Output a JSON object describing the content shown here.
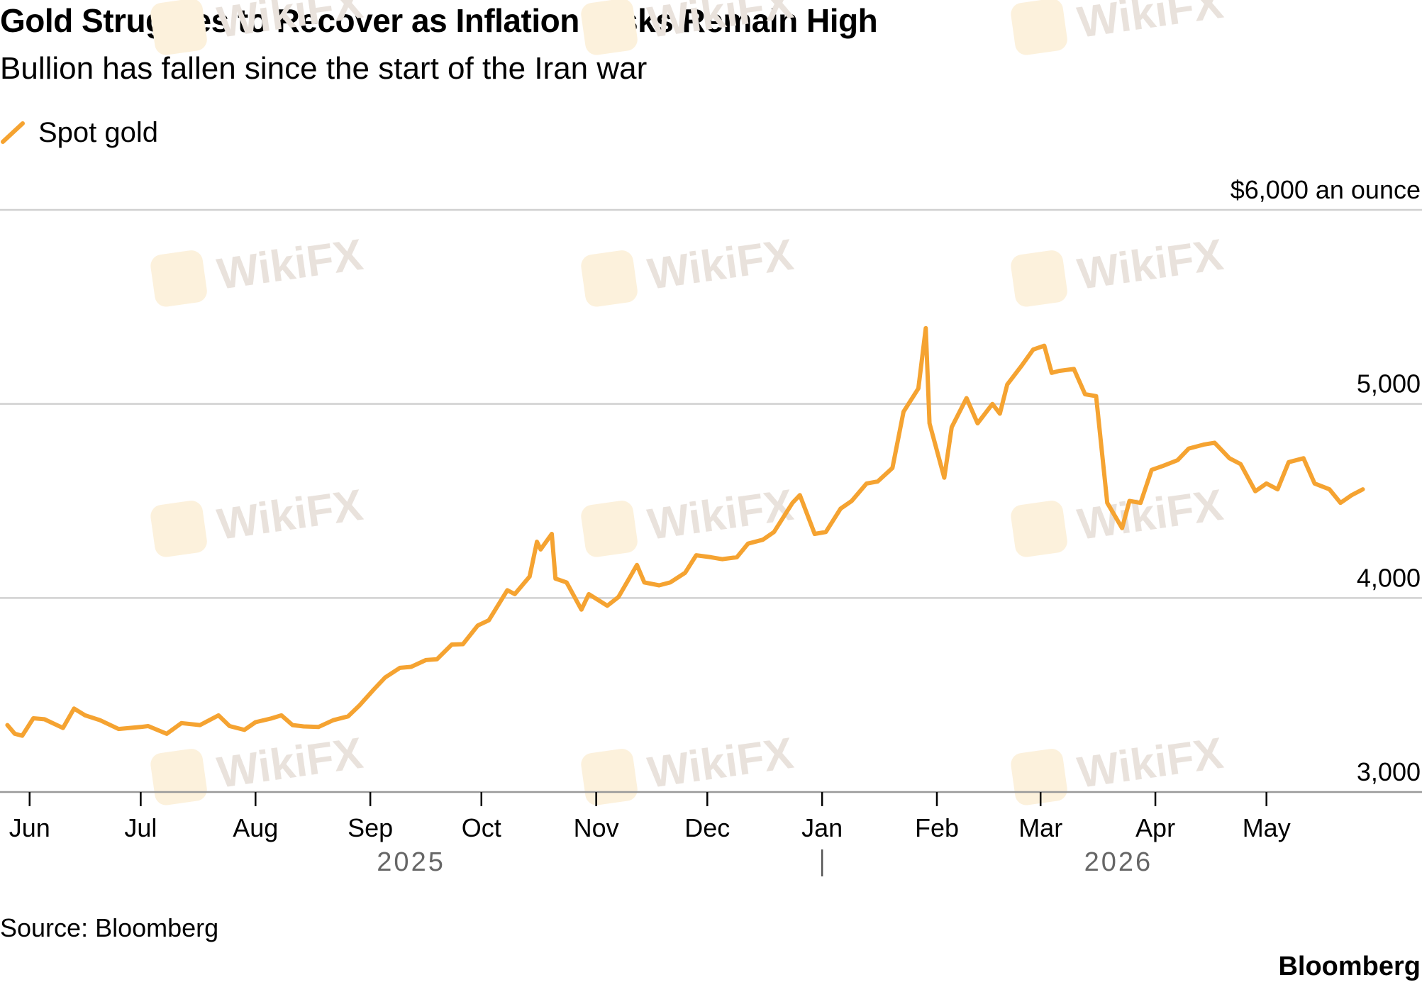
{
  "watermark_text": "WikiFX",
  "footer": {
    "source": "Source: Bloomberg",
    "brand": "Bloomberg"
  },
  "colors": {
    "series": "#f5a331",
    "grid": "#d0d0d0",
    "axis": "#999999",
    "year_label": "#666666"
  },
  "chart_data": {
    "type": "line",
    "title": "Gold Struggles to Recover as Inflation Risks Remain High",
    "subtitle": "Bullion has fallen since the start of the Iran war",
    "legend": "top-left",
    "grid": true,
    "y_unit_label": "$6,000 an ounce",
    "ylim": [
      3000,
      6000
    ],
    "y_ticks": [
      {
        "value": 3000,
        "label": "3,000"
      },
      {
        "value": 4000,
        "label": "4,000"
      },
      {
        "value": 5000,
        "label": "5,000"
      },
      {
        "value": 6000,
        "label": "$6,000 an ounce"
      }
    ],
    "xlim": [
      "2025-05-24",
      "2026-06-12"
    ],
    "x_ticks": [
      {
        "date": "2025-06-01",
        "label": "Jun"
      },
      {
        "date": "2025-07-01",
        "label": "Jul"
      },
      {
        "date": "2025-08-01",
        "label": "Aug"
      },
      {
        "date": "2025-09-01",
        "label": "Sep"
      },
      {
        "date": "2025-10-01",
        "label": "Oct"
      },
      {
        "date": "2025-11-01",
        "label": "Nov"
      },
      {
        "date": "2025-12-01",
        "label": "Dec"
      },
      {
        "date": "2026-01-01",
        "label": "Jan"
      },
      {
        "date": "2026-02-01",
        "label": "Feb"
      },
      {
        "date": "2026-03-01",
        "label": "Mar"
      },
      {
        "date": "2026-04-01",
        "label": "Apr"
      },
      {
        "date": "2026-05-01",
        "label": "May"
      }
    ],
    "year_labels": [
      {
        "date": "2025-09-12",
        "label": "2025"
      },
      {
        "date": "2026-03-22",
        "label": "2026"
      }
    ],
    "year_divider": "2026-01-01",
    "series": [
      {
        "name": "Spot gold",
        "points": [
          [
            "2025-05-26",
            3345
          ],
          [
            "2025-05-28",
            3300
          ],
          [
            "2025-05-30",
            3290
          ],
          [
            "2025-06-02",
            3380
          ],
          [
            "2025-06-05",
            3375
          ],
          [
            "2025-06-10",
            3330
          ],
          [
            "2025-06-13",
            3430
          ],
          [
            "2025-06-16",
            3395
          ],
          [
            "2025-06-20",
            3370
          ],
          [
            "2025-06-25",
            3325
          ],
          [
            "2025-07-01",
            3335
          ],
          [
            "2025-07-03",
            3340
          ],
          [
            "2025-07-08",
            3300
          ],
          [
            "2025-07-12",
            3355
          ],
          [
            "2025-07-17",
            3345
          ],
          [
            "2025-07-22",
            3395
          ],
          [
            "2025-07-25",
            3340
          ],
          [
            "2025-07-29",
            3320
          ],
          [
            "2025-08-01",
            3360
          ],
          [
            "2025-08-05",
            3378
          ],
          [
            "2025-08-08",
            3395
          ],
          [
            "2025-08-11",
            3345
          ],
          [
            "2025-08-14",
            3338
          ],
          [
            "2025-08-18",
            3335
          ],
          [
            "2025-08-22",
            3370
          ],
          [
            "2025-08-26",
            3390
          ],
          [
            "2025-08-29",
            3445
          ],
          [
            "2025-09-02",
            3530
          ],
          [
            "2025-09-05",
            3590
          ],
          [
            "2025-09-09",
            3640
          ],
          [
            "2025-09-12",
            3645
          ],
          [
            "2025-09-16",
            3680
          ],
          [
            "2025-09-19",
            3684
          ],
          [
            "2025-09-23",
            3760
          ],
          [
            "2025-09-26",
            3762
          ],
          [
            "2025-09-30",
            3858
          ],
          [
            "2025-10-03",
            3885
          ],
          [
            "2025-10-08",
            4040
          ],
          [
            "2025-10-10",
            4020
          ],
          [
            "2025-10-14",
            4110
          ],
          [
            "2025-10-16",
            4290
          ],
          [
            "2025-10-17",
            4250
          ],
          [
            "2025-10-20",
            4330
          ],
          [
            "2025-10-21",
            4100
          ],
          [
            "2025-10-24",
            4080
          ],
          [
            "2025-10-28",
            3940
          ],
          [
            "2025-10-30",
            4020
          ],
          [
            "2025-11-04",
            3960
          ],
          [
            "2025-11-07",
            4005
          ],
          [
            "2025-11-12",
            4170
          ],
          [
            "2025-11-14",
            4080
          ],
          [
            "2025-11-18",
            4065
          ],
          [
            "2025-11-21",
            4080
          ],
          [
            "2025-11-25",
            4130
          ],
          [
            "2025-11-28",
            4220
          ],
          [
            "2025-12-02",
            4210
          ],
          [
            "2025-12-05",
            4200
          ],
          [
            "2025-12-09",
            4210
          ],
          [
            "2025-12-12",
            4280
          ],
          [
            "2025-12-16",
            4300
          ],
          [
            "2025-12-19",
            4340
          ],
          [
            "2025-12-24",
            4490
          ],
          [
            "2025-12-26",
            4530
          ],
          [
            "2025-12-30",
            4330
          ],
          [
            "2026-01-02",
            4340
          ],
          [
            "2026-01-06",
            4460
          ],
          [
            "2026-01-09",
            4500
          ],
          [
            "2026-01-13",
            4590
          ],
          [
            "2026-01-16",
            4600
          ],
          [
            "2026-01-20",
            4670
          ],
          [
            "2026-01-23",
            4960
          ],
          [
            "2026-01-27",
            5080
          ],
          [
            "2026-01-29",
            5390
          ],
          [
            "2026-01-30",
            4900
          ],
          [
            "2026-02-03",
            4620
          ],
          [
            "2026-02-05",
            4880
          ],
          [
            "2026-02-09",
            5030
          ],
          [
            "2026-02-12",
            4900
          ],
          [
            "2026-02-16",
            5000
          ],
          [
            "2026-02-18",
            4950
          ],
          [
            "2026-02-20",
            5100
          ],
          [
            "2026-02-24",
            5200
          ],
          [
            "2026-02-27",
            5280
          ],
          [
            "2026-03-02",
            5300
          ],
          [
            "2026-03-04",
            5160
          ],
          [
            "2026-03-06",
            5170
          ],
          [
            "2026-03-10",
            5180
          ],
          [
            "2026-03-13",
            5050
          ],
          [
            "2026-03-16",
            5040
          ],
          [
            "2026-03-19",
            4490
          ],
          [
            "2026-03-23",
            4360
          ],
          [
            "2026-03-25",
            4500
          ],
          [
            "2026-03-28",
            4490
          ],
          [
            "2026-03-31",
            4660
          ],
          [
            "2026-04-03",
            4680
          ],
          [
            "2026-04-07",
            4710
          ],
          [
            "2026-04-10",
            4770
          ],
          [
            "2026-04-14",
            4790
          ],
          [
            "2026-04-17",
            4800
          ],
          [
            "2026-04-21",
            4720
          ],
          [
            "2026-04-24",
            4690
          ],
          [
            "2026-04-28",
            4550
          ],
          [
            "2026-05-01",
            4590
          ],
          [
            "2026-05-04",
            4560
          ],
          [
            "2026-05-07",
            4700
          ],
          [
            "2026-05-11",
            4720
          ],
          [
            "2026-05-14",
            4590
          ],
          [
            "2026-05-18",
            4560
          ],
          [
            "2026-05-21",
            4490
          ],
          [
            "2026-05-24",
            4530
          ],
          [
            "2026-05-27",
            4560
          ]
        ]
      }
    ]
  }
}
